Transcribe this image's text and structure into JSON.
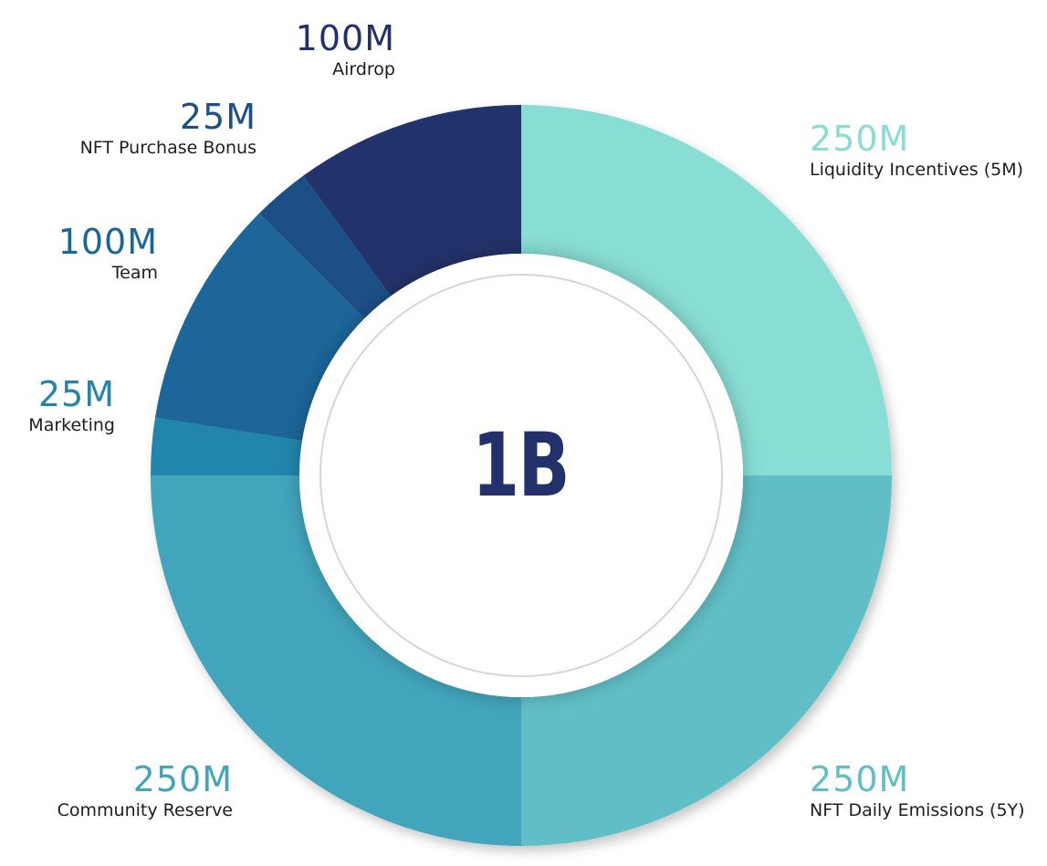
{
  "chart_data": {
    "type": "pie",
    "donut": true,
    "center_label": "1B",
    "slices": [
      {
        "label_value": "250M",
        "name": "Liquidity Incentives (5M)",
        "value": 250,
        "color": "#88ddd4"
      },
      {
        "label_value": "250M",
        "name": "NFT Daily Emissions (5Y)",
        "value": 250,
        "color": "#60bfc6"
      },
      {
        "label_value": "250M",
        "name": "Community Reserve",
        "value": 250,
        "color": "#42a5bc"
      },
      {
        "label_value": "25M",
        "name": "Marketing",
        "value": 25,
        "color": "#2485ac"
      },
      {
        "label_value": "100M",
        "name": "Team",
        "value": 100,
        "color": "#1a669a"
      },
      {
        "label_value": "25M",
        "name": "NFT Purchase Bonus",
        "value": 25,
        "color": "#1e4f86"
      },
      {
        "label_value": "100M",
        "name": "Airdrop",
        "value": 100,
        "color": "#22306b"
      }
    ]
  }
}
